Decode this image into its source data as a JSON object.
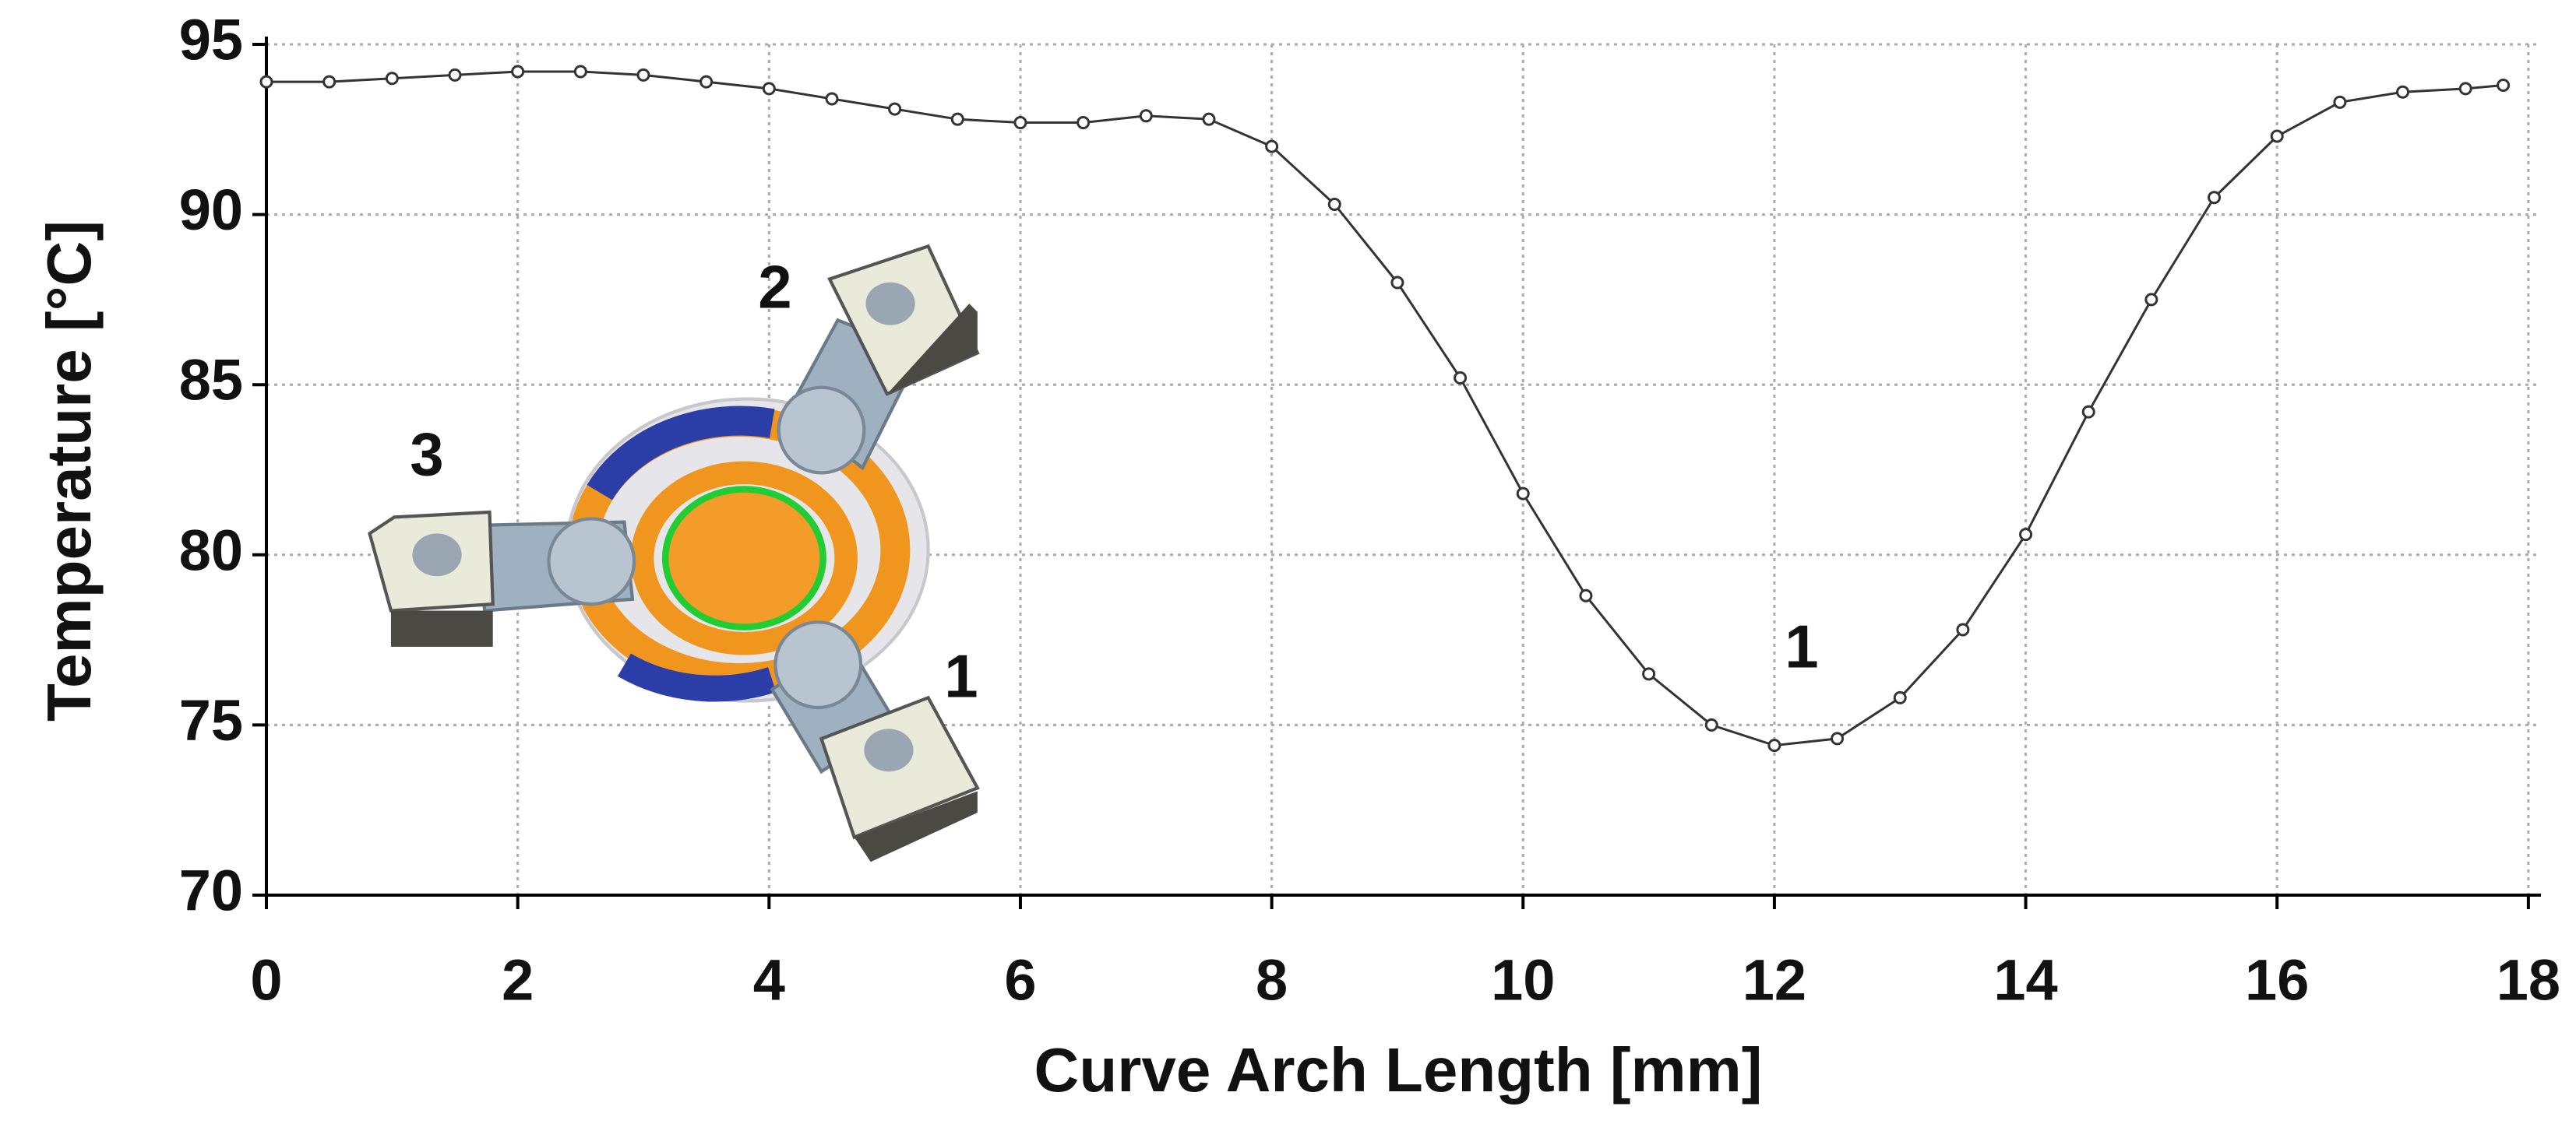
{
  "chart_data": {
    "type": "line",
    "x_label": "Curve Arch Length [mm]",
    "y_label": "Temperature [°C]",
    "x": [
      0,
      0.5,
      1,
      1.5,
      2,
      2.5,
      3,
      3.5,
      4,
      4.5,
      5,
      5.5,
      6,
      6.5,
      7,
      7.5,
      8,
      8.5,
      9,
      9.5,
      10,
      10.5,
      11,
      11.5,
      12,
      12.5,
      13,
      13.5,
      14,
      14.5,
      15,
      15.5,
      16,
      16.5,
      17,
      17.5,
      17.8
    ],
    "series": [
      {
        "color": "#333333",
        "values": [
          93.9,
          93.9,
          94.0,
          94.1,
          94.2,
          94.2,
          94.1,
          93.9,
          93.7,
          93.4,
          93.1,
          92.8,
          92.7,
          92.7,
          92.9,
          92.8,
          92.0,
          90.3,
          88.0,
          85.2,
          81.8,
          78.8,
          76.5,
          75.0,
          74.4,
          74.6,
          75.8,
          77.8,
          80.6,
          84.2,
          87.5,
          90.5,
          92.3,
          93.3,
          93.6,
          93.7,
          93.8
        ]
      }
    ],
    "xlim": [
      0,
      18.1
    ],
    "xticks": [
      0,
      2,
      4,
      6,
      8,
      10,
      12,
      14,
      16,
      18
    ],
    "ylim": [
      70,
      95
    ],
    "yticks": [
      70,
      75,
      80,
      85,
      90,
      95
    ],
    "grid": true,
    "annotations": [
      "1"
    ],
    "inset_labels": [
      "1",
      "2",
      "3"
    ]
  }
}
